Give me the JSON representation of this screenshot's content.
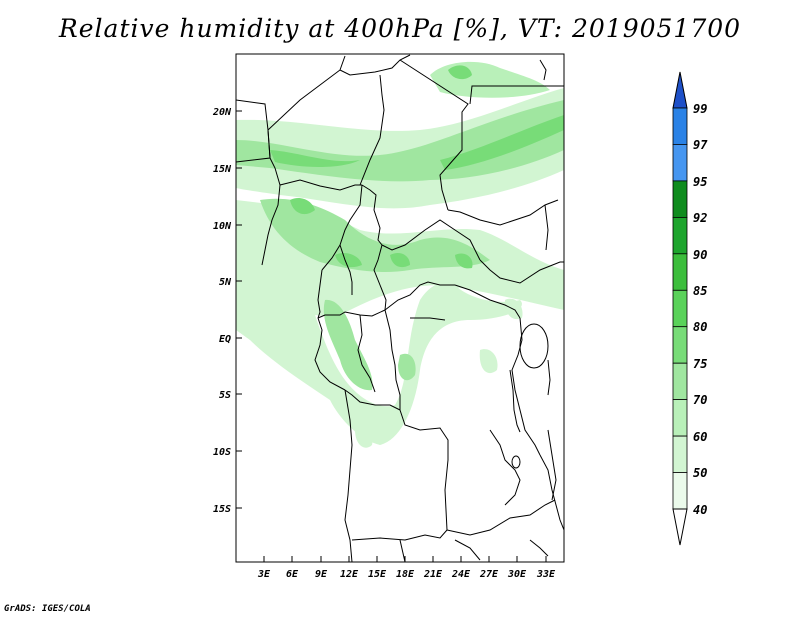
{
  "title": "Relative humidity at 400hPa [%], VT: 2019051700",
  "credit": "GrADS: IGES/COLA",
  "map": {
    "lat_labels": [
      "20N",
      "15N",
      "10N",
      "5N",
      "EQ",
      "5S",
      "10S",
      "15S"
    ],
    "lon_labels": [
      "3E",
      "6E",
      "9E",
      "12E",
      "15E",
      "18E",
      "21E",
      "24E",
      "27E",
      "30E",
      "33E"
    ]
  },
  "colorbar": {
    "levels": [
      "99",
      "97",
      "95",
      "92",
      "90",
      "85",
      "80",
      "75",
      "70",
      "60",
      "50",
      "40"
    ],
    "colors": [
      "#1e50c8",
      "#2a82e6",
      "#4696f0",
      "#0f8c1e",
      "#1ea52d",
      "#3cbe3c",
      "#5ad25a",
      "#78dc78",
      "#a0e6a0",
      "#b9f0b9",
      "#d2f5d2",
      "#ebfaeb"
    ]
  }
}
